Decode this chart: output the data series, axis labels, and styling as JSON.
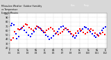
{
  "title_text": "Milwaukee Weather  Outdoor Humidity\nvs Temperature\nEvery 5 Minutes",
  "background_color": "#d8d8d8",
  "plot_bg_color": "#ffffff",
  "grid_color": "#b0b0b0",
  "blue_color": "#0000ff",
  "red_color": "#ff0000",
  "xlim": [
    0,
    100
  ],
  "ylim": [
    20,
    100
  ],
  "blue_points": [
    [
      1,
      72
    ],
    [
      2,
      76
    ],
    [
      4,
      74
    ],
    [
      6,
      52
    ],
    [
      7,
      42
    ],
    [
      9,
      46
    ],
    [
      11,
      63
    ],
    [
      13,
      67
    ],
    [
      15,
      60
    ],
    [
      17,
      56
    ],
    [
      19,
      50
    ],
    [
      21,
      46
    ],
    [
      23,
      53
    ],
    [
      25,
      58
    ],
    [
      27,
      63
    ],
    [
      29,
      68
    ],
    [
      31,
      66
    ],
    [
      33,
      61
    ],
    [
      35,
      56
    ],
    [
      37,
      50
    ],
    [
      39,
      46
    ],
    [
      41,
      40
    ],
    [
      43,
      43
    ],
    [
      45,
      48
    ],
    [
      47,
      53
    ],
    [
      49,
      58
    ],
    [
      51,
      63
    ],
    [
      53,
      68
    ],
    [
      55,
      70
    ],
    [
      57,
      66
    ],
    [
      59,
      62
    ],
    [
      61,
      57
    ],
    [
      63,
      52
    ],
    [
      65,
      47
    ],
    [
      67,
      43
    ],
    [
      69,
      48
    ],
    [
      71,
      54
    ],
    [
      73,
      59
    ],
    [
      75,
      64
    ],
    [
      77,
      69
    ],
    [
      79,
      67
    ],
    [
      81,
      63
    ],
    [
      83,
      58
    ],
    [
      85,
      53
    ],
    [
      87,
      48
    ],
    [
      89,
      44
    ],
    [
      91,
      49
    ],
    [
      93,
      55
    ],
    [
      95,
      60
    ],
    [
      97,
      65
    ],
    [
      99,
      68
    ]
  ],
  "red_points": [
    [
      1,
      38
    ],
    [
      3,
      43
    ],
    [
      5,
      58
    ],
    [
      8,
      64
    ],
    [
      10,
      62
    ],
    [
      12,
      66
    ],
    [
      14,
      70
    ],
    [
      16,
      75
    ],
    [
      18,
      73
    ],
    [
      20,
      67
    ],
    [
      22,
      63
    ],
    [
      24,
      60
    ],
    [
      26,
      65
    ],
    [
      28,
      70
    ],
    [
      30,
      67
    ],
    [
      32,
      63
    ],
    [
      34,
      59
    ],
    [
      36,
      56
    ],
    [
      38,
      60
    ],
    [
      40,
      64
    ],
    [
      42,
      67
    ],
    [
      44,
      64
    ],
    [
      46,
      59
    ],
    [
      48,
      54
    ],
    [
      50,
      51
    ],
    [
      52,
      54
    ],
    [
      54,
      58
    ],
    [
      56,
      62
    ],
    [
      58,
      65
    ],
    [
      60,
      62
    ],
    [
      62,
      57
    ],
    [
      64,
      53
    ],
    [
      66,
      49
    ],
    [
      68,
      54
    ],
    [
      70,
      59
    ],
    [
      72,
      63
    ],
    [
      74,
      60
    ],
    [
      76,
      56
    ],
    [
      78,
      52
    ],
    [
      80,
      56
    ],
    [
      82,
      60
    ],
    [
      84,
      63
    ],
    [
      86,
      60
    ],
    [
      88,
      55
    ],
    [
      90,
      51
    ],
    [
      92,
      48
    ],
    [
      94,
      52
    ],
    [
      96,
      56
    ],
    [
      98,
      51
    ]
  ],
  "ytick_values": [
    20,
    30,
    40,
    50,
    60,
    70,
    80,
    90,
    100
  ],
  "ytick_labels": [
    "20",
    "30",
    "40",
    "50",
    "60",
    "70",
    "80",
    "90",
    "100"
  ],
  "xtick_positions": [
    0,
    9,
    18,
    27,
    36,
    45,
    54,
    63,
    72,
    81,
    90,
    99
  ],
  "xtick_labels": [
    "Fr\n5/1",
    "Sa\n5/2",
    "Su\n5/3",
    "Mo\n5/4",
    "Tu\n5/5",
    "We\n5/6",
    "Th\n5/7",
    "Fr\n5/8",
    "Sa\n5/9",
    "Su\n5/10",
    "Mo\n5/11",
    "Tu\n5/12"
  ]
}
